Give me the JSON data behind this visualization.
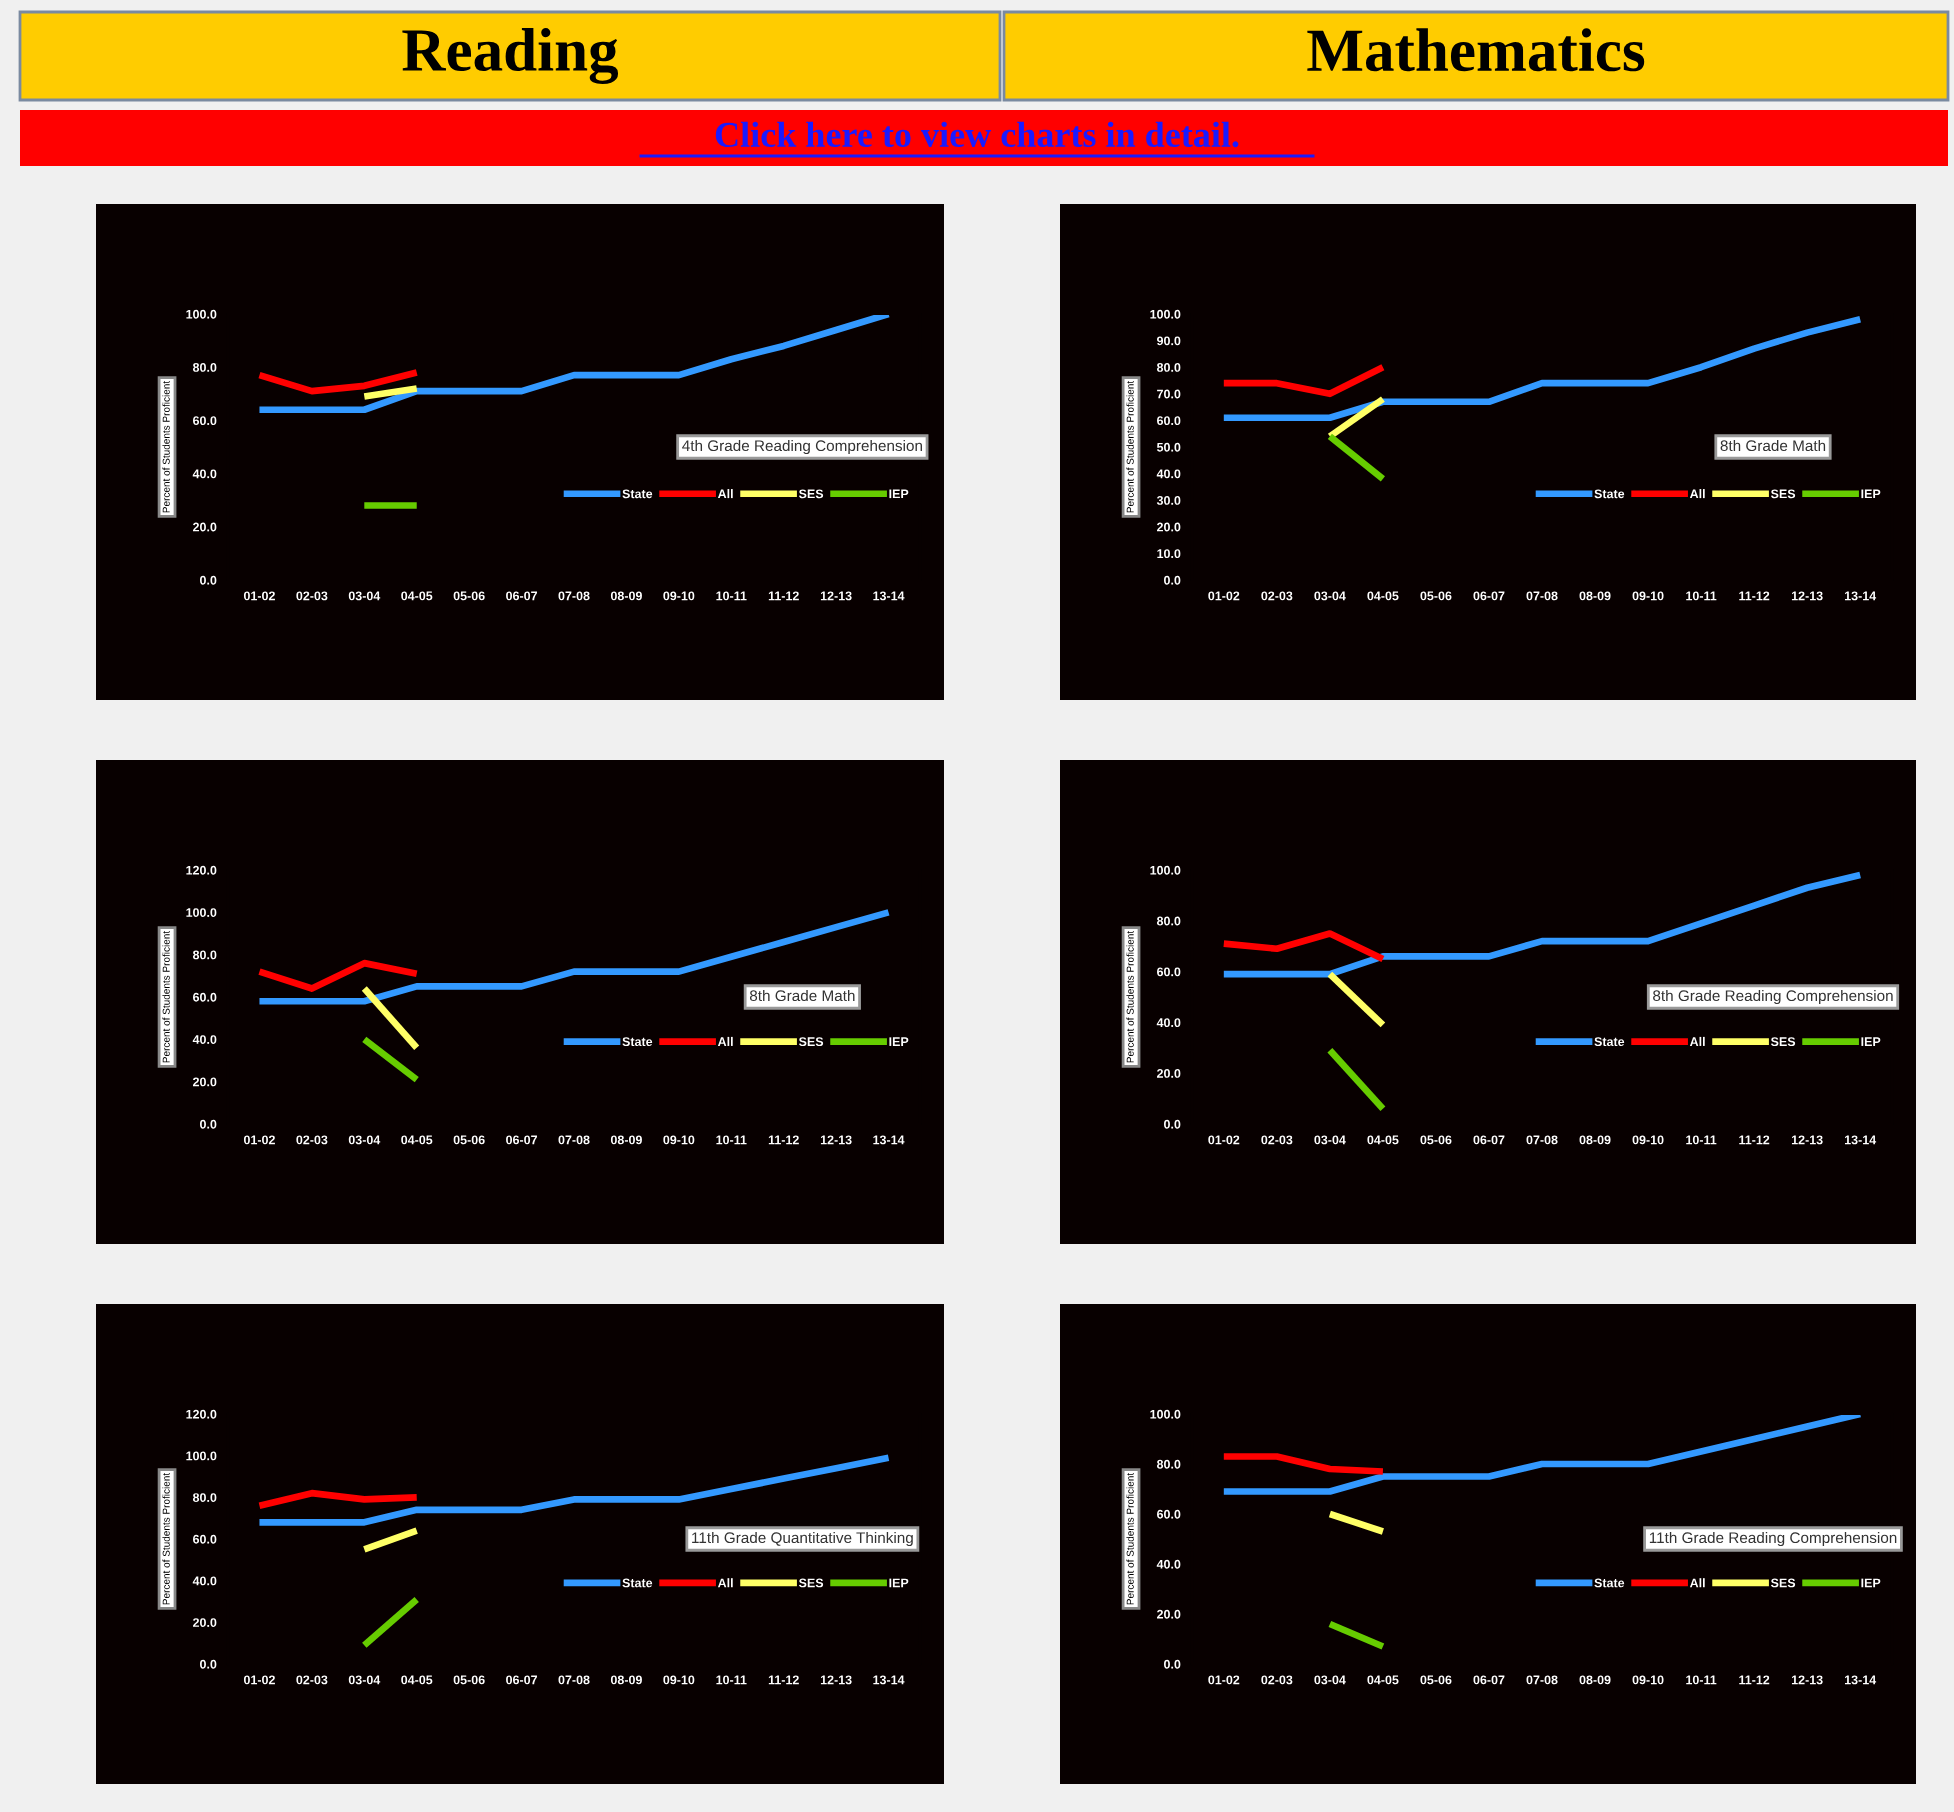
{
  "chart_data": [
    {
      "type": "line",
      "title": "4th Grade Reading Comprehension",
      "ylabel": "Percent of Students Proficient",
      "annotations": [
        "Reading",
        "Click here to view charts in detail."
      ],
      "categories": [
        "01-02",
        "02-03",
        "03-04",
        "04-05",
        "05-06",
        "06-07",
        "07-08",
        "08-09",
        "09-10",
        "10-11",
        "11-12",
        "12-13",
        "13-14"
      ],
      "series": [
        {
          "name": "State",
          "color": "#3399ff",
          "values": [
            64,
            64,
            64,
            71,
            71,
            71,
            77,
            77,
            77,
            83,
            88,
            94,
            100
          ]
        },
        {
          "name": "All",
          "color": "#ff0000",
          "values": [
            77,
            71,
            73,
            78,
            null,
            null,
            null,
            null,
            null,
            null,
            null,
            null,
            null
          ]
        },
        {
          "name": "SES",
          "color": "#ffff66",
          "values": [
            null,
            null,
            69,
            72,
            null,
            null,
            null,
            null,
            null,
            null,
            null,
            null,
            null
          ]
        },
        {
          "name": "IEP",
          "color": "#66cc00",
          "values": [
            null,
            null,
            28,
            28,
            null,
            null,
            null,
            null,
            null,
            null,
            null,
            null,
            null
          ]
        }
      ],
      "ylim": [
        0,
        100
      ],
      "yticks": [
        {
          "value": 0,
          "label": "0.0"
        },
        {
          "value": 20,
          "label": "20.0"
        },
        {
          "value": 40,
          "label": "40.0"
        },
        {
          "value": 60,
          "label": "60.0"
        },
        {
          "value": 80,
          "label": "80.0"
        },
        {
          "value": 100,
          "label": "100.0"
        }
      ],
      "legend": "right",
      "grid": false,
      "line_style": "solid"
    },
    {
      "type": "line",
      "title": "8th Grade Math",
      "ylabel": "Percent of Students Proficient",
      "annotations": [
        "Mathematics"
      ],
      "categories": [
        "01-02",
        "02-03",
        "03-04",
        "04-05",
        "05-06",
        "06-07",
        "07-08",
        "08-09",
        "09-10",
        "10-11",
        "11-12",
        "12-13",
        "13-14"
      ],
      "series": [
        {
          "name": "State",
          "color": "#3399ff",
          "values": [
            61,
            61,
            61,
            67,
            67,
            67,
            74,
            74,
            74,
            80,
            87,
            93,
            98
          ]
        },
        {
          "name": "All",
          "color": "#ff0000",
          "values": [
            74,
            74,
            70,
            80,
            null,
            null,
            null,
            null,
            null,
            null,
            null,
            null,
            null
          ]
        },
        {
          "name": "SES",
          "color": "#ffff66",
          "values": [
            null,
            null,
            54,
            68,
            null,
            null,
            null,
            null,
            null,
            null,
            null,
            null,
            null
          ]
        },
        {
          "name": "IEP",
          "color": "#66cc00",
          "values": [
            null,
            null,
            54,
            38,
            null,
            null,
            null,
            null,
            null,
            null,
            null,
            null,
            null
          ]
        }
      ],
      "ylim": [
        0,
        100
      ],
      "yticks": [
        {
          "value": 0,
          "label": "0.0"
        },
        {
          "value": 10,
          "label": "10.0"
        },
        {
          "value": 20,
          "label": "20.0"
        },
        {
          "value": 30,
          "label": "30.0"
        },
        {
          "value": 40,
          "label": "40.0"
        },
        {
          "value": 50,
          "label": "50.0"
        },
        {
          "value": 60,
          "label": "60.0"
        },
        {
          "value": 70,
          "label": "70.0"
        },
        {
          "value": 80,
          "label": "80.0"
        },
        {
          "value": 90,
          "label": "90.0"
        },
        {
          "value": 100,
          "label": "100.0"
        }
      ],
      "legend": "right",
      "grid": false,
      "line_style": "solid"
    },
    {
      "type": "line",
      "title": "8th Grade Math",
      "ylabel": "Percent of Students Proficient",
      "categories": [
        "01-02",
        "02-03",
        "03-04",
        "04-05",
        "05-06",
        "06-07",
        "07-08",
        "08-09",
        "09-10",
        "10-11",
        "11-12",
        "12-13",
        "13-14"
      ],
      "series": [
        {
          "name": "State",
          "color": "#3399ff",
          "values": [
            58,
            58,
            58,
            65,
            65,
            65,
            72,
            72,
            72,
            79,
            86,
            93,
            100
          ]
        },
        {
          "name": "All",
          "color": "#ff0000",
          "values": [
            72,
            64,
            76,
            71,
            null,
            null,
            null,
            null,
            null,
            null,
            null,
            null,
            null
          ]
        },
        {
          "name": "SES",
          "color": "#ffff66",
          "values": [
            null,
            null,
            64,
            36,
            null,
            null,
            null,
            null,
            null,
            null,
            null,
            null,
            null
          ]
        },
        {
          "name": "IEP",
          "color": "#66cc00",
          "values": [
            null,
            null,
            40,
            21,
            null,
            null,
            null,
            null,
            null,
            null,
            null,
            null,
            null
          ]
        }
      ],
      "ylim": [
        0,
        120
      ],
      "yticks": [
        {
          "value": 0,
          "label": "0.0"
        },
        {
          "value": 20,
          "label": "20.0"
        },
        {
          "value": 40,
          "label": "40.0"
        },
        {
          "value": 60,
          "label": "60.0"
        },
        {
          "value": 80,
          "label": "80.0"
        },
        {
          "value": 100,
          "label": "100.0"
        },
        {
          "value": 120,
          "label": "120.0"
        }
      ],
      "legend": "right",
      "grid": false,
      "line_style": "solid"
    },
    {
      "type": "line",
      "title": "8th Grade Reading Comprehension",
      "ylabel": "Percent of Students Proficient",
      "categories": [
        "01-02",
        "02-03",
        "03-04",
        "04-05",
        "05-06",
        "06-07",
        "07-08",
        "08-09",
        "09-10",
        "10-11",
        "11-12",
        "12-13",
        "13-14"
      ],
      "series": [
        {
          "name": "State",
          "color": "#3399ff",
          "values": [
            59,
            59,
            59,
            66,
            66,
            66,
            72,
            72,
            72,
            79,
            86,
            93,
            98
          ]
        },
        {
          "name": "All",
          "color": "#ff0000",
          "values": [
            71,
            69,
            75,
            65,
            null,
            null,
            null,
            null,
            null,
            null,
            null,
            null,
            null
          ]
        },
        {
          "name": "SES",
          "color": "#ffff66",
          "values": [
            null,
            null,
            59,
            39,
            null,
            null,
            null,
            null,
            null,
            null,
            null,
            null,
            null
          ]
        },
        {
          "name": "IEP",
          "color": "#66cc00",
          "values": [
            null,
            null,
            29,
            6,
            null,
            null,
            null,
            null,
            null,
            null,
            null,
            null,
            null
          ]
        }
      ],
      "ylim": [
        0,
        100
      ],
      "yticks": [
        {
          "value": 0,
          "label": "0.0"
        },
        {
          "value": 20,
          "label": "20.0"
        },
        {
          "value": 40,
          "label": "40.0"
        },
        {
          "value": 60,
          "label": "60.0"
        },
        {
          "value": 80,
          "label": "80.0"
        },
        {
          "value": 100,
          "label": "100.0"
        }
      ],
      "legend": "right",
      "grid": false,
      "line_style": "solid"
    },
    {
      "type": "line",
      "title": "11th Grade Quantitative Thinking",
      "ylabel": "Percent of Students Proficient",
      "categories": [
        "01-02",
        "02-03",
        "03-04",
        "04-05",
        "05-06",
        "06-07",
        "07-08",
        "08-09",
        "09-10",
        "10-11",
        "11-12",
        "12-13",
        "13-14"
      ],
      "series": [
        {
          "name": "State",
          "color": "#3399ff",
          "values": [
            68,
            68,
            68,
            74,
            74,
            74,
            79,
            79,
            79,
            84,
            89,
            94,
            99
          ]
        },
        {
          "name": "All",
          "color": "#ff0000",
          "values": [
            76,
            82,
            79,
            80,
            null,
            null,
            null,
            null,
            null,
            null,
            null,
            null,
            null
          ]
        },
        {
          "name": "SES",
          "color": "#ffff66",
          "values": [
            null,
            null,
            55,
            64,
            null,
            null,
            null,
            null,
            null,
            null,
            null,
            null,
            null
          ]
        },
        {
          "name": "IEP",
          "color": "#66cc00",
          "values": [
            null,
            null,
            9,
            31,
            null,
            null,
            null,
            null,
            null,
            null,
            null,
            null,
            null
          ]
        }
      ],
      "ylim": [
        0,
        120
      ],
      "yticks": [
        {
          "value": 0,
          "label": "0.0"
        },
        {
          "value": 20,
          "label": "20.0"
        },
        {
          "value": 40,
          "label": "40.0"
        },
        {
          "value": 60,
          "label": "60.0"
        },
        {
          "value": 80,
          "label": "80.0"
        },
        {
          "value": 100,
          "label": "100.0"
        },
        {
          "value": 120,
          "label": "120.0"
        }
      ],
      "legend": "right",
      "grid": false,
      "line_style": "solid"
    },
    {
      "type": "line",
      "title": "11th Grade Reading Comprehension",
      "ylabel": "Percent of Students Proficient",
      "categories": [
        "01-02",
        "02-03",
        "03-04",
        "04-05",
        "05-06",
        "06-07",
        "07-08",
        "08-09",
        "09-10",
        "10-11",
        "11-12",
        "12-13",
        "13-14"
      ],
      "series": [
        {
          "name": "State",
          "color": "#3399ff",
          "values": [
            69,
            69,
            69,
            75,
            75,
            75,
            80,
            80,
            80,
            85,
            90,
            95,
            100
          ]
        },
        {
          "name": "All",
          "color": "#ff0000",
          "values": [
            83,
            83,
            78,
            77,
            null,
            null,
            null,
            null,
            null,
            null,
            null,
            null,
            null
          ]
        },
        {
          "name": "SES",
          "color": "#ffff66",
          "values": [
            null,
            null,
            60,
            53,
            null,
            null,
            null,
            null,
            null,
            null,
            null,
            null,
            null
          ]
        },
        {
          "name": "IEP",
          "color": "#66cc00",
          "values": [
            null,
            null,
            16,
            7,
            null,
            null,
            null,
            null,
            null,
            null,
            null,
            null,
            null
          ]
        }
      ],
      "ylim": [
        0,
        100
      ],
      "yticks": [
        {
          "value": 0,
          "label": "0.0"
        },
        {
          "value": 20,
          "label": "20.0"
        },
        {
          "value": 40,
          "label": "40.0"
        },
        {
          "value": 60,
          "label": "60.0"
        },
        {
          "value": 80,
          "label": "80.0"
        },
        {
          "value": 100,
          "label": "100.0"
        }
      ],
      "legend": "right",
      "grid": false,
      "line_style": "solid"
    }
  ]
}
